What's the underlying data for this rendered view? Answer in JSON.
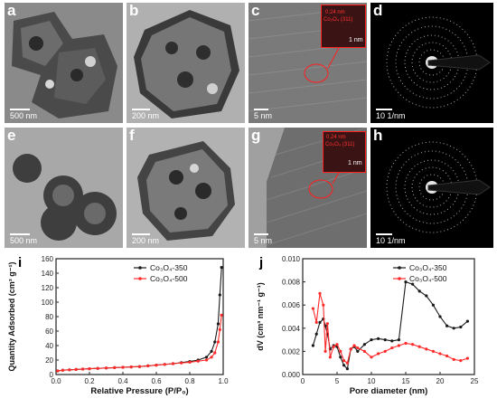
{
  "panels": [
    {
      "id": "a",
      "label": "a",
      "scale": "500 nm",
      "bg": "#8d8d8d"
    },
    {
      "id": "b",
      "label": "b",
      "scale": "200 nm",
      "bg": "#a6a6a6"
    },
    {
      "id": "c",
      "label": "c",
      "scale": "5 nm",
      "bg": "#808080",
      "inset_lines": [
        "0.24 nm",
        "Co₃O₄ (311)"
      ],
      "inset_scale": "1 nm"
    },
    {
      "id": "d",
      "label": "d",
      "scale": "10 1/nm",
      "bg": "#000000"
    },
    {
      "id": "e",
      "label": "e",
      "scale": "500 nm",
      "bg": "#a3a3a3"
    },
    {
      "id": "f",
      "label": "f",
      "scale": "200 nm",
      "bg": "#a7a7a7"
    },
    {
      "id": "g",
      "label": "g",
      "scale": "5 nm",
      "bg": "#8a8a8a",
      "inset_lines": [
        "0.24 nm",
        "Co₃O₄ (311)"
      ],
      "inset_scale": "1 nm"
    },
    {
      "id": "h",
      "label": "h",
      "scale": "10 1/nm",
      "bg": "#000000"
    }
  ],
  "colors": {
    "black_series": "#1a1a1a",
    "red_series": "#ff2a2a",
    "axis": "#222222"
  },
  "chart_data": [
    {
      "panel_label": "i",
      "type": "line",
      "xlabel": "Relative Pressure (P/P₀)",
      "ylabel": "Quantity Adsorbed (cm³ g⁻¹)",
      "xlim": [
        0.0,
        1.0
      ],
      "ylim": [
        0,
        160
      ],
      "xticks": [
        "0.0",
        "0.2",
        "0.4",
        "0.6",
        "0.8",
        "1.0"
      ],
      "yticks": [
        "0",
        "20",
        "40",
        "60",
        "80",
        "100",
        "120",
        "140",
        "160"
      ],
      "legend_position": "top-right",
      "series": [
        {
          "name": "Co₃O₄-350",
          "color": "#1a1a1a",
          "x": [
            0.01,
            0.04,
            0.08,
            0.12,
            0.16,
            0.2,
            0.25,
            0.3,
            0.35,
            0.4,
            0.45,
            0.5,
            0.55,
            0.6,
            0.65,
            0.7,
            0.75,
            0.8,
            0.85,
            0.9,
            0.93,
            0.95,
            0.97,
            0.98,
            0.99
          ],
          "y": [
            5,
            6,
            6.5,
            7,
            7.5,
            8,
            8.5,
            9,
            9.5,
            10,
            10.5,
            11,
            12,
            13,
            14,
            15,
            16.5,
            18,
            20,
            24,
            32,
            45,
            70,
            110,
            148
          ]
        },
        {
          "name": "Co₃O₄-500",
          "color": "#ff2a2a",
          "x": [
            0.01,
            0.04,
            0.08,
            0.12,
            0.16,
            0.2,
            0.25,
            0.3,
            0.35,
            0.4,
            0.45,
            0.5,
            0.55,
            0.6,
            0.65,
            0.7,
            0.75,
            0.8,
            0.85,
            0.9,
            0.93,
            0.95,
            0.97,
            0.98,
            0.99
          ],
          "y": [
            5,
            6,
            6.5,
            7,
            7.5,
            8,
            8.5,
            9,
            9.5,
            10,
            10.5,
            11,
            12,
            13,
            14,
            15,
            16,
            17,
            18.5,
            20,
            24,
            30,
            45,
            62,
            82
          ]
        }
      ]
    },
    {
      "panel_label": "j",
      "type": "line",
      "xlabel": "Pore diameter (nm)",
      "ylabel": "dV (cm³ nm⁻¹ g⁻¹)",
      "xlim": [
        0,
        25
      ],
      "ylim": [
        0,
        0.01
      ],
      "xticks": [
        "0",
        "5",
        "10",
        "15",
        "20",
        "25"
      ],
      "yticks": [
        "0.000",
        "0.002",
        "0.004",
        "0.006",
        "0.008",
        "0.010"
      ],
      "legend_position": "top-right",
      "series": [
        {
          "name": "Co₃O₄-350",
          "color": "#1a1a1a",
          "x": [
            1.5,
            2.0,
            2.5,
            3.0,
            3.3,
            3.6,
            4.0,
            4.5,
            5.0,
            5.5,
            6.0,
            6.5,
            7.0,
            7.5,
            8.0,
            9.0,
            10.0,
            11.0,
            12.0,
            13.0,
            14.0,
            15.0,
            16.0,
            17.0,
            18.0,
            19.0,
            20.0,
            21.0,
            22.0,
            23.0,
            24.0
          ],
          "y": [
            0.0025,
            0.0035,
            0.0045,
            0.0048,
            0.0042,
            0.0035,
            0.0022,
            0.0025,
            0.0024,
            0.0015,
            0.0008,
            0.0005,
            0.0022,
            0.0024,
            0.002,
            0.0026,
            0.003,
            0.0031,
            0.003,
            0.0029,
            0.003,
            0.008,
            0.0078,
            0.0072,
            0.0068,
            0.006,
            0.005,
            0.0042,
            0.004,
            0.0041,
            0.0046
          ]
        },
        {
          "name": "Co₃O₄-500",
          "color": "#ff2a2a",
          "x": [
            1.5,
            2.0,
            2.5,
            3.0,
            3.3,
            3.6,
            4.0,
            4.5,
            5.0,
            5.5,
            6.0,
            6.5,
            7.0,
            7.5,
            8.0,
            9.0,
            10.0,
            11.0,
            12.0,
            13.0,
            14.0,
            15.0,
            16.0,
            17.0,
            18.0,
            19.0,
            20.0,
            21.0,
            22.0,
            23.0,
            24.0
          ],
          "y": [
            0.0057,
            0.0045,
            0.007,
            0.006,
            0.002,
            0.0044,
            0.0015,
            0.0024,
            0.0026,
            0.002,
            0.0012,
            0.001,
            0.0022,
            0.0025,
            0.0023,
            0.002,
            0.0015,
            0.0018,
            0.002,
            0.0023,
            0.0025,
            0.0027,
            0.0026,
            0.0024,
            0.0022,
            0.002,
            0.0018,
            0.0016,
            0.0013,
            0.0012,
            0.0014
          ]
        }
      ]
    }
  ]
}
